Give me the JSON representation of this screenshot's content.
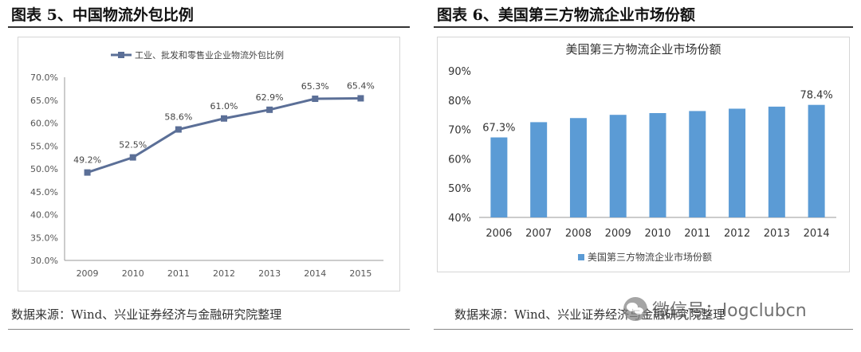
{
  "panels": [
    {
      "title": "图表 5、中国物流外包比例",
      "source": "数据来源：Wind、兴业证券经济与金融研究院整理"
    },
    {
      "title": "图表 6、美国第三方物流企业市场份额",
      "source": "数据来源：Wind、兴业证券经济与金融研究院整理"
    }
  ],
  "watermark": {
    "text": "微信号：logclubcn",
    "icon": "wechat-icon"
  },
  "colors": {
    "line": "#5b6f97",
    "bar": "#5b9bd5"
  },
  "chart_data": [
    {
      "type": "line",
      "title": "",
      "x": [
        "2009",
        "2010",
        "2011",
        "2012",
        "2013",
        "2014",
        "2015"
      ],
      "series": [
        {
          "name": "工业、批发和零售业企业物流外包比例",
          "values": [
            49.2,
            52.5,
            58.6,
            61.0,
            62.9,
            65.3,
            65.4
          ]
        }
      ],
      "data_labels": [
        "49.2%",
        "52.5%",
        "58.6%",
        "61.0%",
        "62.9%",
        "65.3%",
        "65.4%"
      ],
      "yticks": [
        "30.0%",
        "35.0%",
        "40.0%",
        "45.0%",
        "50.0%",
        "55.0%",
        "60.0%",
        "65.0%",
        "70.0%"
      ],
      "ylim": [
        30,
        70
      ],
      "legend": "top",
      "grid": false,
      "xlabel": "",
      "ylabel": ""
    },
    {
      "type": "bar",
      "title": "美国第三方物流企业市场份额",
      "categories": [
        "2006",
        "2007",
        "2008",
        "2009",
        "2010",
        "2011",
        "2012",
        "2013",
        "2014"
      ],
      "series": [
        {
          "name": "美国第三方物流企业市场份额",
          "values": [
            67.3,
            72.5,
            73.9,
            75.0,
            75.6,
            76.3,
            77.1,
            77.8,
            78.4
          ]
        }
      ],
      "data_labels": {
        "first": "67.3%",
        "last": "78.4%"
      },
      "yticks": [
        "40%",
        "50%",
        "60%",
        "70%",
        "80%",
        "90%"
      ],
      "ylim": [
        40,
        90
      ],
      "legend": "bottom",
      "grid": false,
      "xlabel": "",
      "ylabel": ""
    }
  ]
}
